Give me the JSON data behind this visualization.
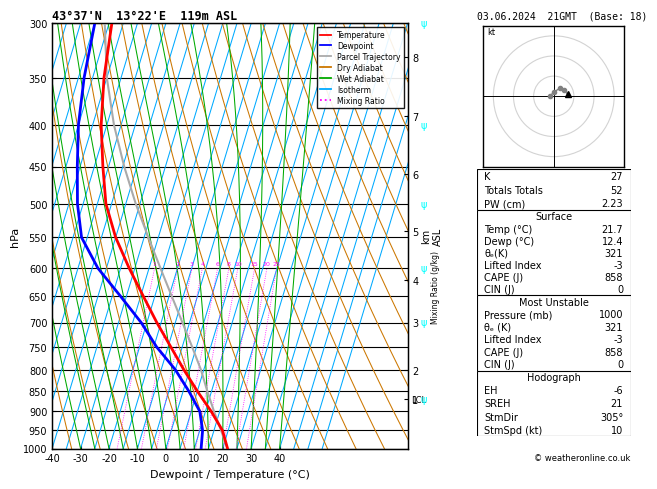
{
  "title_left": "43°37'N  13°22'E  119m ASL",
  "title_right": "03.06.2024  21GMT  (Base: 18)",
  "xlabel": "Dewpoint / Temperature (°C)",
  "ylabel_left": "hPa",
  "pressure_major": [
    300,
    350,
    400,
    450,
    500,
    550,
    600,
    650,
    700,
    750,
    800,
    850,
    900,
    950,
    1000
  ],
  "temp_range": [
    -40,
    40
  ],
  "skew_factor": 45.0,
  "temp_line_color": "#ff0000",
  "dewp_line_color": "#0000ff",
  "parcel_color": "#aaaaaa",
  "dry_adiabat_color": "#cc7700",
  "wet_adiabat_color": "#00aa00",
  "isotherm_color": "#00aaff",
  "mixing_ratio_color": "#ff00ff",
  "mixing_ratio_labels": [
    1,
    2,
    3,
    4,
    6,
    8,
    10,
    15,
    20,
    25
  ],
  "km_ticks": [
    1,
    2,
    3,
    4,
    5,
    6,
    7,
    8
  ],
  "km_pressures": [
    870,
    800,
    700,
    620,
    540,
    460,
    390,
    330
  ],
  "lcl_pressure": 870,
  "temp_profile_T": [
    21.7,
    18.0,
    12.0,
    5.0,
    -2.0,
    -9.0,
    -16.5,
    -24.0,
    -32.0,
    -40.0,
    -47.0,
    -52.0,
    -57.0,
    -61.0,
    -64.0
  ],
  "temp_profile_P": [
    1000,
    950,
    900,
    850,
    800,
    750,
    700,
    650,
    600,
    550,
    500,
    450,
    400,
    350,
    300
  ],
  "dewp_profile_T": [
    12.4,
    11.0,
    8.0,
    2.0,
    -5.0,
    -14.0,
    -22.0,
    -32.0,
    -43.0,
    -52.0,
    -57.0,
    -61.0,
    -65.0,
    -68.0,
    -70.0
  ],
  "dewp_profile_P": [
    1000,
    950,
    900,
    850,
    800,
    750,
    700,
    650,
    600,
    550,
    500,
    450,
    400,
    350,
    300
  ],
  "parcel_profile_T": [
    21.7,
    17.5,
    13.0,
    8.5,
    4.0,
    -1.5,
    -7.5,
    -14.0,
    -21.0,
    -28.5,
    -36.5,
    -44.5,
    -52.5,
    -60.0,
    -66.5
  ],
  "parcel_profile_P": [
    1000,
    950,
    900,
    850,
    800,
    750,
    700,
    650,
    600,
    550,
    500,
    450,
    400,
    350,
    300
  ],
  "hodograph_u": [
    -2,
    0,
    3,
    5,
    7
  ],
  "hodograph_v": [
    0,
    2,
    4,
    3,
    1
  ],
  "stats": {
    "K": 27,
    "Totals_Totals": 52,
    "PW_cm": 2.23,
    "Surface_Temp": 21.7,
    "Surface_Dewp": 12.4,
    "Surface_theta_e": 321,
    "Surface_LI": -3,
    "Surface_CAPE": 858,
    "Surface_CIN": 0,
    "MU_Pressure": 1000,
    "MU_theta_e": 321,
    "MU_LI": -3,
    "MU_CAPE": 858,
    "MU_CIN": 0,
    "EH": -6,
    "SREH": 21,
    "StmDir": 305,
    "StmSpd": 10
  },
  "legend_entries": [
    {
      "label": "Temperature",
      "color": "#ff0000",
      "style": "-"
    },
    {
      "label": "Dewpoint",
      "color": "#0000ff",
      "style": "-"
    },
    {
      "label": "Parcel Trajectory",
      "color": "#aaaaaa",
      "style": "-"
    },
    {
      "label": "Dry Adiabat",
      "color": "#cc7700",
      "style": "-"
    },
    {
      "label": "Wet Adiabat",
      "color": "#00aa00",
      "style": "-"
    },
    {
      "label": "Isotherm",
      "color": "#00aaff",
      "style": "-"
    },
    {
      "label": "Mixing Ratio",
      "color": "#ff00ff",
      "style": ":"
    }
  ]
}
